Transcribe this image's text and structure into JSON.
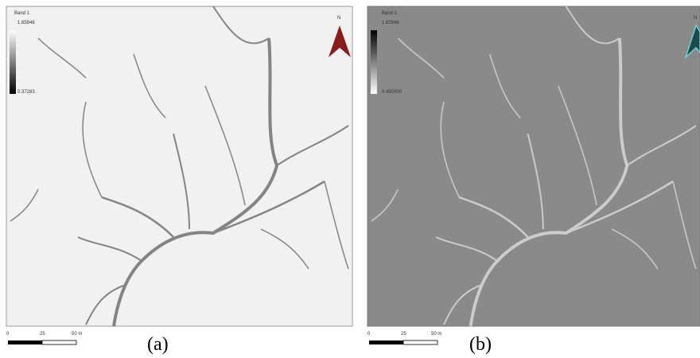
{
  "panels": [
    {
      "legend": {
        "title": "Band 1",
        "max": "1.65946",
        "min": "0.37283"
      },
      "north": "N",
      "scale": [
        "0",
        "25",
        "50 m"
      ],
      "caption": "(a)"
    },
    {
      "legend": {
        "title": "Band 1",
        "max": "1.65946",
        "min": "0.450000"
      },
      "north": "N",
      "scale": [
        "0",
        "25",
        "50 m"
      ],
      "caption": "(b)"
    }
  ]
}
